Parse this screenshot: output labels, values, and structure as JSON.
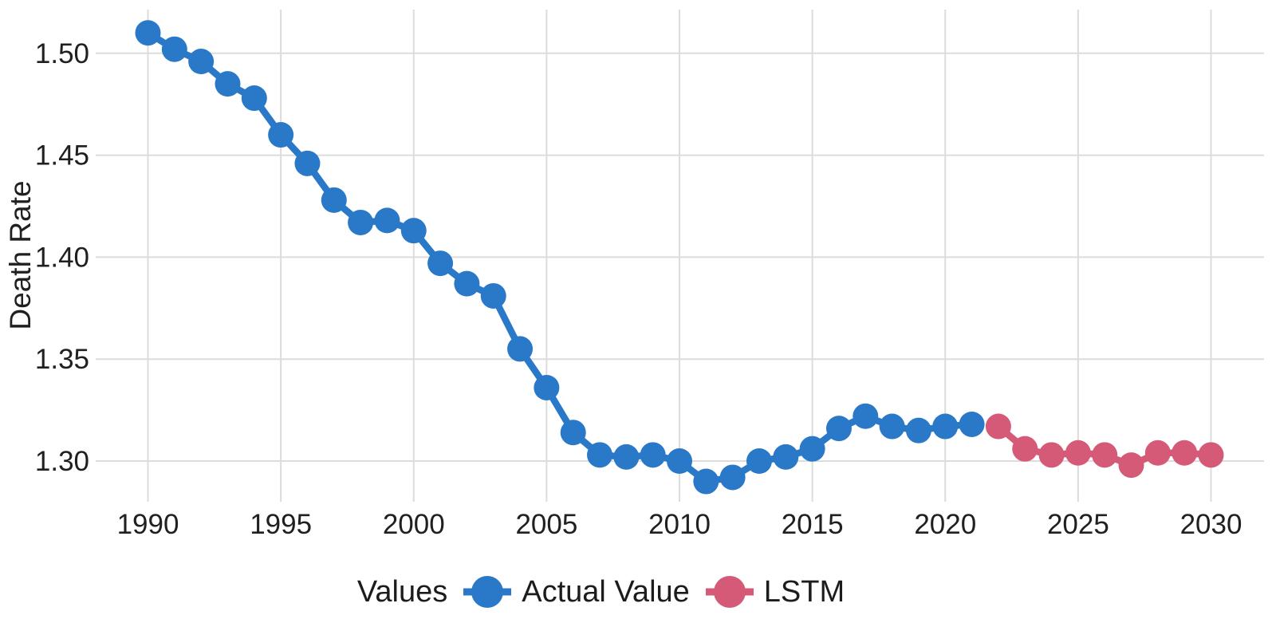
{
  "page": {
    "background_color": "#ffffff",
    "text_color": "#202020"
  },
  "chart_data": {
    "type": "line",
    "title": "",
    "xlabel": "",
    "ylabel": "Death Rate",
    "legend_title": "Values",
    "legend_position": "bottom-center",
    "grid": true,
    "grid_color": "#dcdcdc",
    "xlim": [
      1988,
      2032
    ],
    "ylim": [
      1.28,
      1.521
    ],
    "x_ticks": [
      1990,
      1995,
      2000,
      2005,
      2010,
      2015,
      2020,
      2025,
      2030
    ],
    "x_tick_labels": [
      "1990",
      "1995",
      "2000",
      "2005",
      "2010",
      "2015",
      "2020",
      "2025",
      "2030"
    ],
    "y_ticks": [
      1.5,
      1.45,
      1.4,
      1.35,
      1.3
    ],
    "y_tick_labels": [
      "1.50",
      "1.45",
      "1.40",
      "1.35",
      "1.30"
    ],
    "series": [
      {
        "name": "Actual Value",
        "color": "#2979c8",
        "x": [
          1990,
          1991,
          1992,
          1993,
          1994,
          1995,
          1996,
          1997,
          1998,
          1999,
          2000,
          2001,
          2002,
          2003,
          2004,
          2005,
          2006,
          2007,
          2008,
          2009,
          2010,
          2011,
          2012,
          2013,
          2014,
          2015,
          2016,
          2017,
          2018,
          2019,
          2020,
          2021
        ],
        "y": [
          1.51,
          1.502,
          1.496,
          1.485,
          1.478,
          1.46,
          1.446,
          1.428,
          1.417,
          1.418,
          1.413,
          1.397,
          1.387,
          1.381,
          1.355,
          1.336,
          1.314,
          1.303,
          1.302,
          1.303,
          1.3,
          1.29,
          1.292,
          1.3,
          1.302,
          1.306,
          1.316,
          1.322,
          1.317,
          1.315,
          1.317,
          1.318
        ]
      },
      {
        "name": "LSTM",
        "color": "#d55a78",
        "x": [
          2022,
          2023,
          2024,
          2025,
          2026,
          2027,
          2028,
          2029,
          2030
        ],
        "y": [
          1.317,
          1.306,
          1.303,
          1.304,
          1.303,
          1.298,
          1.304,
          1.304,
          1.303
        ]
      }
    ]
  }
}
